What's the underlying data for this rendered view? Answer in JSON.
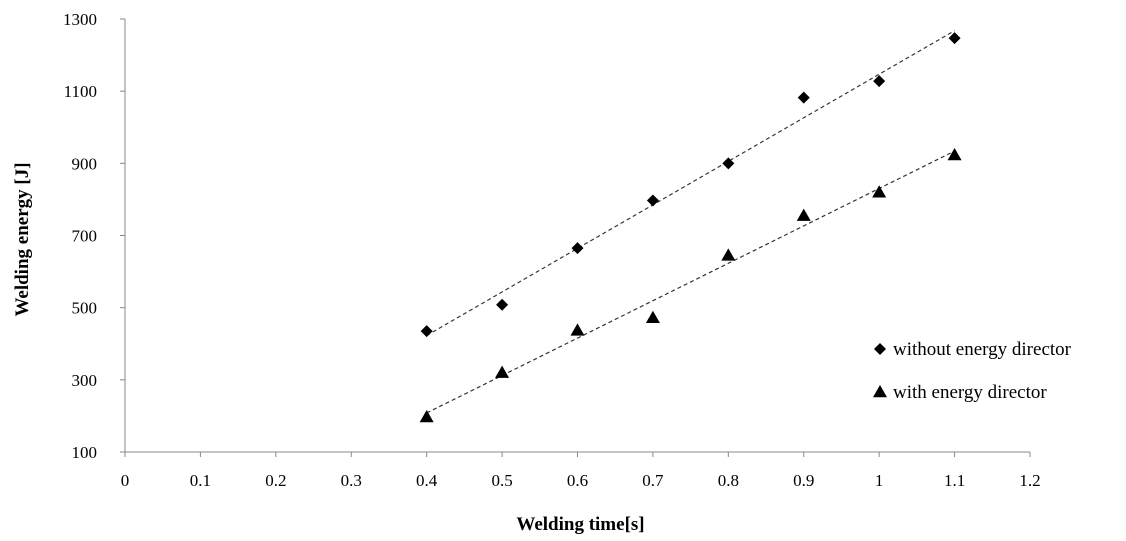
{
  "chart_data": {
    "type": "scatter",
    "title": "",
    "xlabel": "Welding time[s]",
    "ylabel": "Welding energy [J]",
    "xlim": [
      0,
      1.2
    ],
    "ylim": [
      100,
      1300
    ],
    "x_ticks": [
      "0",
      "0.1",
      "0.2",
      "0.3",
      "0.4",
      "0.5",
      "0.6",
      "0.7",
      "0.8",
      "0.9",
      "1",
      "1.1",
      "1.2"
    ],
    "y_ticks": [
      "100",
      "300",
      "500",
      "700",
      "900",
      "1100",
      "1300"
    ],
    "grid": false,
    "legend_position": "right",
    "series": [
      {
        "name": "without energy director",
        "marker": "diamond",
        "color": "#000000",
        "trendline": "linear",
        "x": [
          0.4,
          0.5,
          0.6,
          0.7,
          0.8,
          0.9,
          1.0,
          1.1
        ],
        "y": [
          435,
          508,
          665,
          797,
          900,
          1082,
          1128,
          1247
        ]
      },
      {
        "name": "with energy director",
        "marker": "triangle",
        "color": "#000000",
        "trendline": "linear",
        "x": [
          0.4,
          0.5,
          0.6,
          0.7,
          0.8,
          0.9,
          1.0,
          1.1
        ],
        "y": [
          197,
          320,
          437,
          472,
          645,
          755,
          820,
          923
        ]
      }
    ]
  }
}
